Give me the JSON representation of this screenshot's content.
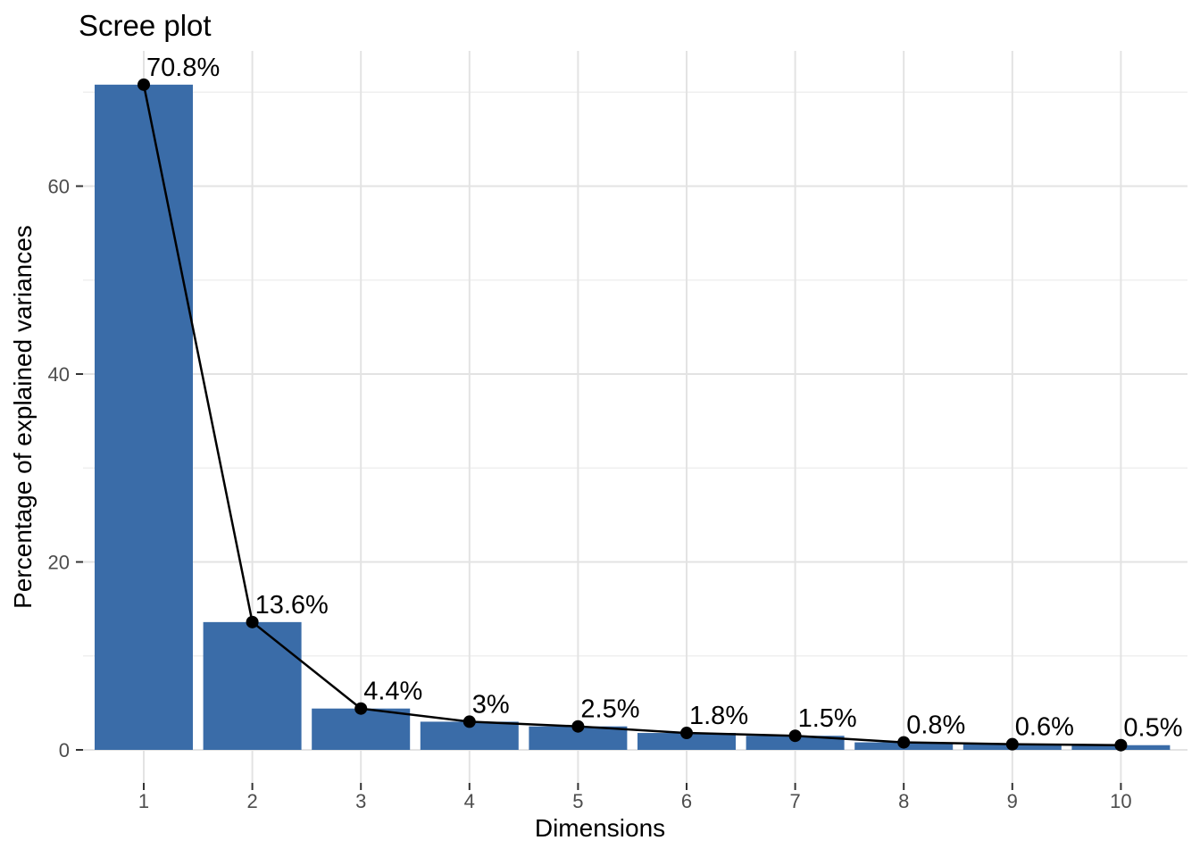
{
  "chart_data": {
    "type": "bar",
    "title": "Scree plot",
    "xlabel": "Dimensions",
    "ylabel": "Percentage of explained variances",
    "categories": [
      "1",
      "2",
      "3",
      "4",
      "5",
      "6",
      "7",
      "8",
      "9",
      "10"
    ],
    "values": [
      70.8,
      13.6,
      4.4,
      3,
      2.5,
      1.8,
      1.5,
      0.8,
      0.6,
      0.5
    ],
    "point_labels": [
      "70.8%",
      "13.6%",
      "4.4%",
      "3%",
      "2.5%",
      "1.8%",
      "1.5%",
      "0.8%",
      "0.6%",
      "0.5%"
    ],
    "overlay_line": true,
    "yticks": [
      0,
      20,
      40,
      60
    ],
    "yticks_minor": [
      10,
      30,
      50,
      70
    ],
    "ylim": [
      -3.5,
      74.3
    ],
    "grid": "on",
    "legend_position": "none",
    "colors": {
      "bar_fill": "#3A6CA8",
      "line": "#000000",
      "point": "#000000",
      "label_text": "#000000",
      "grid_major": "#E3E3E3",
      "grid_minor": "#EFEFEF",
      "axis_tick": "#333333",
      "tick_label": "#4D4D4D",
      "background": "#FFFFFF"
    }
  }
}
